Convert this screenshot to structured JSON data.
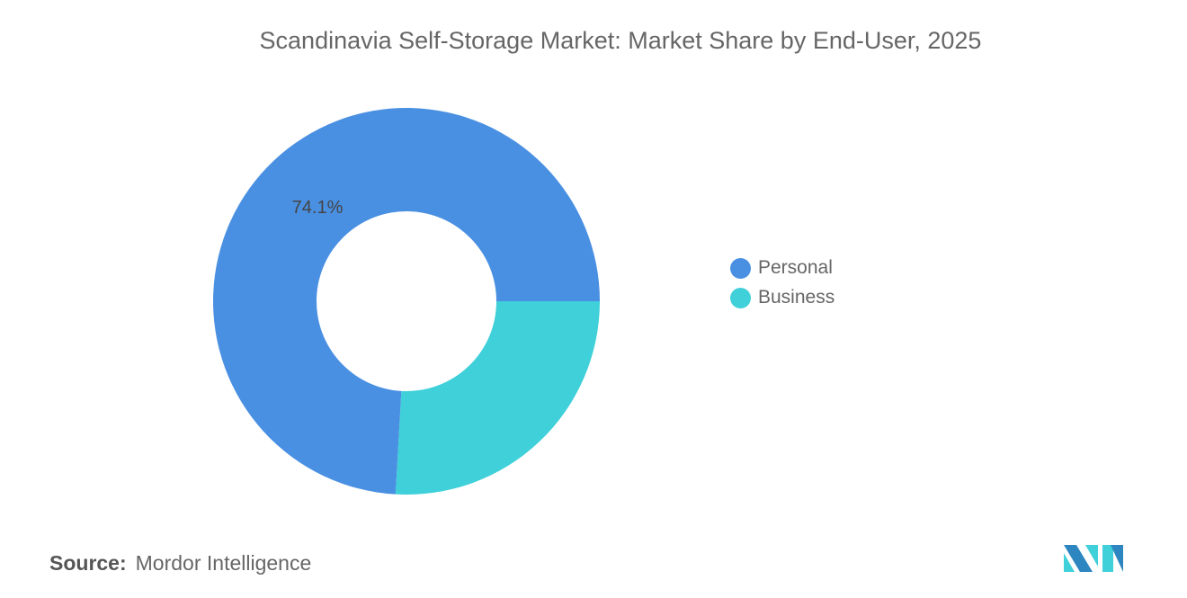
{
  "chart_data": {
    "type": "pie",
    "subtype": "donut",
    "title": "Scandinavia Self-Storage Market: Market Share by End-User, 2025",
    "categories": [
      "Personal",
      "Business"
    ],
    "values": [
      74.1,
      25.9
    ],
    "colors": [
      "#4a90e2",
      "#3fd0d9"
    ],
    "data_labels": [
      "74.1%",
      ""
    ],
    "legend_position": "right"
  },
  "source": {
    "label": "Source:",
    "value": "Mordor Intelligence"
  },
  "logo": {
    "text": "Mordor Intelligence",
    "colors": [
      "#2e86c1",
      "#3fd0d9"
    ]
  }
}
